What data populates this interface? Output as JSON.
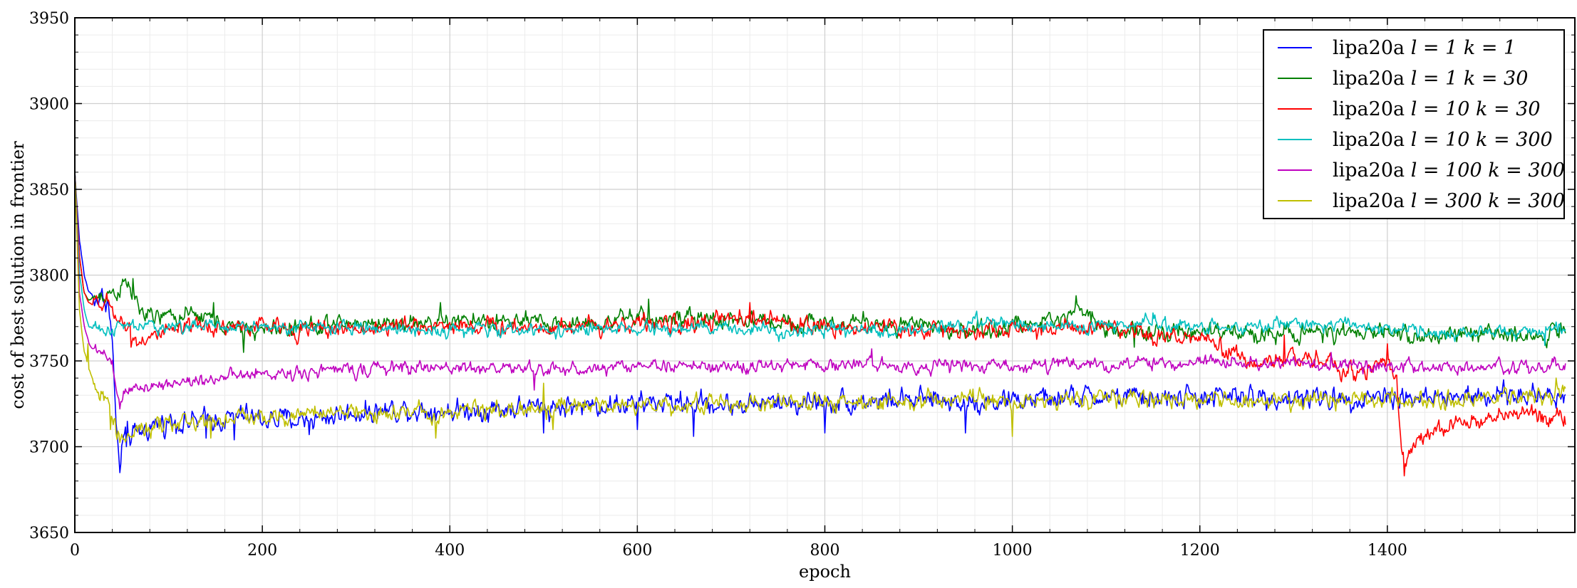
{
  "chart_data": {
    "type": "line",
    "title": "",
    "xlabel": "epoch",
    "ylabel": "cost of best solution in frontier",
    "xlim": [
      0,
      1600
    ],
    "ylim": [
      3650,
      3950
    ],
    "xticks": [
      0,
      200,
      400,
      600,
      800,
      1000,
      1200,
      1400
    ],
    "xtick_labels": [
      "0",
      "200",
      "400",
      "600",
      "800",
      "1000",
      "1200",
      "1400"
    ],
    "yticks": [
      3650,
      3700,
      3750,
      3800,
      3850,
      3900,
      3950
    ],
    "ytick_labels": [
      "3650",
      "3700",
      "3750",
      "3800",
      "3850",
      "3900",
      "3950"
    ],
    "grid": true,
    "legend_position": "top-right",
    "series": [
      {
        "name": "lipa20a l = 1 k = 1",
        "legend_text": "lipa20a",
        "legend_math": "l = 1 k = 1",
        "color": "#0000ff",
        "anchors": [
          [
            0,
            3860
          ],
          [
            5,
            3820
          ],
          [
            10,
            3800
          ],
          [
            15,
            3790
          ],
          [
            20,
            3788
          ],
          [
            25,
            3786
          ],
          [
            30,
            3787
          ],
          [
            35,
            3786
          ],
          [
            40,
            3760
          ],
          [
            45,
            3705
          ],
          [
            48,
            3684
          ],
          [
            50,
            3700
          ],
          [
            55,
            3708
          ],
          [
            60,
            3705
          ],
          [
            80,
            3712
          ],
          [
            100,
            3715
          ],
          [
            120,
            3714
          ],
          [
            140,
            3716
          ],
          [
            160,
            3716
          ],
          [
            180,
            3718
          ],
          [
            200,
            3716
          ],
          [
            250,
            3716
          ],
          [
            300,
            3720
          ],
          [
            350,
            3722
          ],
          [
            400,
            3721
          ],
          [
            450,
            3722
          ],
          [
            500,
            3723
          ],
          [
            550,
            3724
          ],
          [
            600,
            3725
          ],
          [
            650,
            3726
          ],
          [
            700,
            3724
          ],
          [
            750,
            3726
          ],
          [
            800,
            3726
          ],
          [
            850,
            3727
          ],
          [
            900,
            3727
          ],
          [
            950,
            3726
          ],
          [
            1000,
            3727
          ],
          [
            1050,
            3728
          ],
          [
            1100,
            3729
          ],
          [
            1150,
            3728
          ],
          [
            1200,
            3729
          ],
          [
            1250,
            3729
          ],
          [
            1300,
            3728
          ],
          [
            1350,
            3728
          ],
          [
            1400,
            3730
          ],
          [
            1450,
            3728
          ],
          [
            1500,
            3729
          ],
          [
            1550,
            3730
          ],
          [
            1590,
            3730
          ]
        ],
        "noise": 5,
        "spikes": [
          [
            55,
            3700
          ],
          [
            95,
            3706
          ],
          [
            140,
            3705
          ],
          [
            170,
            3704
          ],
          [
            250,
            3707
          ],
          [
            500,
            3708
          ],
          [
            600,
            3710
          ],
          [
            660,
            3706
          ],
          [
            800,
            3708
          ],
          [
            950,
            3708
          ]
        ]
      },
      {
        "name": "lipa20a l = 1 k = 30",
        "legend_text": "lipa20a",
        "legend_math": "l = 1 k = 30",
        "color": "#008000",
        "anchors": [
          [
            0,
            3860
          ],
          [
            5,
            3810
          ],
          [
            10,
            3790
          ],
          [
            15,
            3785
          ],
          [
            20,
            3787
          ],
          [
            30,
            3789
          ],
          [
            40,
            3790
          ],
          [
            50,
            3792
          ],
          [
            55,
            3795
          ],
          [
            60,
            3790
          ],
          [
            70,
            3780
          ],
          [
            80,
            3775
          ],
          [
            100,
            3776
          ],
          [
            140,
            3776
          ],
          [
            170,
            3768
          ],
          [
            200,
            3768
          ],
          [
            250,
            3770
          ],
          [
            300,
            3772
          ],
          [
            350,
            3772
          ],
          [
            400,
            3773
          ],
          [
            450,
            3773
          ],
          [
            500,
            3772
          ],
          [
            550,
            3772
          ],
          [
            600,
            3775
          ],
          [
            650,
            3774
          ],
          [
            700,
            3774
          ],
          [
            750,
            3773
          ],
          [
            800,
            3772
          ],
          [
            850,
            3772
          ],
          [
            900,
            3770
          ],
          [
            950,
            3768
          ],
          [
            1000,
            3770
          ],
          [
            1050,
            3774
          ],
          [
            1070,
            3782
          ],
          [
            1090,
            3774
          ],
          [
            1100,
            3770
          ],
          [
            1150,
            3765
          ],
          [
            1200,
            3767
          ],
          [
            1250,
            3766
          ],
          [
            1300,
            3767
          ],
          [
            1350,
            3765
          ],
          [
            1400,
            3767
          ],
          [
            1450,
            3764
          ],
          [
            1500,
            3766
          ],
          [
            1550,
            3765
          ],
          [
            1590,
            3768
          ]
        ],
        "noise": 4,
        "spikes": [
          [
            62,
            3798
          ],
          [
            148,
            3784
          ],
          [
            180,
            3755
          ],
          [
            390,
            3784
          ],
          [
            612,
            3786
          ],
          [
            1068,
            3788
          ],
          [
            1130,
            3758
          ]
        ]
      },
      {
        "name": "lipa20a l = 10 k = 30",
        "legend_text": "lipa20a",
        "legend_math": "l = 10 k = 30",
        "color": "#ff0000",
        "anchors": [
          [
            0,
            3860
          ],
          [
            5,
            3810
          ],
          [
            10,
            3790
          ],
          [
            15,
            3784
          ],
          [
            25,
            3782
          ],
          [
            35,
            3783
          ],
          [
            45,
            3778
          ],
          [
            55,
            3770
          ],
          [
            65,
            3762
          ],
          [
            80,
            3764
          ],
          [
            100,
            3766
          ],
          [
            140,
            3770
          ],
          [
            200,
            3770
          ],
          [
            250,
            3768
          ],
          [
            300,
            3769
          ],
          [
            350,
            3770
          ],
          [
            400,
            3771
          ],
          [
            450,
            3770
          ],
          [
            500,
            3770
          ],
          [
            550,
            3771
          ],
          [
            600,
            3772
          ],
          [
            650,
            3771
          ],
          [
            700,
            3774
          ],
          [
            750,
            3773
          ],
          [
            800,
            3770
          ],
          [
            850,
            3770
          ],
          [
            900,
            3768
          ],
          [
            950,
            3768
          ],
          [
            1000,
            3768
          ],
          [
            1050,
            3769
          ],
          [
            1100,
            3768
          ],
          [
            1150,
            3764
          ],
          [
            1200,
            3763
          ],
          [
            1230,
            3755
          ],
          [
            1260,
            3748
          ],
          [
            1300,
            3752
          ],
          [
            1340,
            3750
          ],
          [
            1350,
            3740
          ],
          [
            1360,
            3745
          ],
          [
            1380,
            3746
          ],
          [
            1400,
            3750
          ],
          [
            1410,
            3740
          ],
          [
            1415,
            3700
          ],
          [
            1420,
            3695
          ],
          [
            1440,
            3705
          ],
          [
            1460,
            3712
          ],
          [
            1500,
            3715
          ],
          [
            1550,
            3720
          ],
          [
            1590,
            3718
          ]
        ],
        "noise": 4,
        "spikes": [
          [
            60,
            3758
          ],
          [
            720,
            3784
          ],
          [
            1290,
            3765
          ],
          [
            1418,
            3683
          ],
          [
            1400,
            3760
          ],
          [
            1588,
            3712
          ]
        ]
      },
      {
        "name": "lipa20a l = 10 k = 300",
        "legend_text": "lipa20a",
        "legend_math": "l = 10 k = 300",
        "color": "#00bfbf",
        "anchors": [
          [
            0,
            3860
          ],
          [
            5,
            3800
          ],
          [
            10,
            3780
          ],
          [
            15,
            3770
          ],
          [
            25,
            3767
          ],
          [
            35,
            3768
          ],
          [
            50,
            3770
          ],
          [
            100,
            3770
          ],
          [
            200,
            3770
          ],
          [
            300,
            3769
          ],
          [
            400,
            3768
          ],
          [
            500,
            3768
          ],
          [
            600,
            3768
          ],
          [
            700,
            3769
          ],
          [
            800,
            3767
          ],
          [
            900,
            3768
          ],
          [
            950,
            3772
          ],
          [
            1000,
            3772
          ],
          [
            1050,
            3770
          ],
          [
            1100,
            3770
          ],
          [
            1150,
            3772
          ],
          [
            1200,
            3770
          ],
          [
            1250,
            3770
          ],
          [
            1300,
            3772
          ],
          [
            1350,
            3771
          ],
          [
            1400,
            3769
          ],
          [
            1450,
            3767
          ],
          [
            1500,
            3766
          ],
          [
            1550,
            3767
          ],
          [
            1590,
            3768
          ]
        ],
        "noise": 3,
        "spikes": [
          [
            962,
            3779
          ],
          [
            1150,
            3778
          ],
          [
            1568,
            3759
          ]
        ]
      },
      {
        "name": "lipa20a l = 100 k = 300",
        "legend_text": "lipa20a",
        "legend_math": "l = 100 k = 300",
        "color": "#bf00bf",
        "anchors": [
          [
            0,
            3860
          ],
          [
            5,
            3790
          ],
          [
            10,
            3770
          ],
          [
            15,
            3760
          ],
          [
            20,
            3756
          ],
          [
            30,
            3755
          ],
          [
            40,
            3745
          ],
          [
            45,
            3730
          ],
          [
            50,
            3728
          ],
          [
            55,
            3732
          ],
          [
            70,
            3735
          ],
          [
            100,
            3737
          ],
          [
            150,
            3740
          ],
          [
            200,
            3742
          ],
          [
            250,
            3744
          ],
          [
            300,
            3745
          ],
          [
            350,
            3746
          ],
          [
            400,
            3746
          ],
          [
            450,
            3746
          ],
          [
            500,
            3745
          ],
          [
            550,
            3745
          ],
          [
            600,
            3748
          ],
          [
            650,
            3747
          ],
          [
            700,
            3746
          ],
          [
            750,
            3747
          ],
          [
            800,
            3748
          ],
          [
            850,
            3748
          ],
          [
            900,
            3747
          ],
          [
            950,
            3747
          ],
          [
            1000,
            3747
          ],
          [
            1050,
            3748
          ],
          [
            1100,
            3748
          ],
          [
            1150,
            3748
          ],
          [
            1200,
            3749
          ],
          [
            1250,
            3750
          ],
          [
            1300,
            3748
          ],
          [
            1350,
            3748
          ],
          [
            1400,
            3747
          ],
          [
            1450,
            3745
          ],
          [
            1500,
            3746
          ],
          [
            1550,
            3746
          ],
          [
            1590,
            3748
          ]
        ],
        "noise": 3,
        "spikes": [
          [
            48,
            3722
          ],
          [
            490,
            3733
          ],
          [
            850,
            3757
          ],
          [
            1340,
            3755
          ]
        ]
      },
      {
        "name": "lipa20a l = 300 k = 300",
        "legend_text": "lipa20a",
        "legend_math": "l = 300 k = 300",
        "color": "#bfbf00",
        "anchors": [
          [
            0,
            3860
          ],
          [
            5,
            3780
          ],
          [
            10,
            3755
          ],
          [
            15,
            3745
          ],
          [
            20,
            3738
          ],
          [
            25,
            3730
          ],
          [
            35,
            3728
          ],
          [
            40,
            3715
          ],
          [
            45,
            3708
          ],
          [
            50,
            3705
          ],
          [
            60,
            3708
          ],
          [
            80,
            3710
          ],
          [
            100,
            3713
          ],
          [
            150,
            3716
          ],
          [
            200,
            3718
          ],
          [
            250,
            3719
          ],
          [
            300,
            3720
          ],
          [
            350,
            3720
          ],
          [
            400,
            3721
          ],
          [
            450,
            3722
          ],
          [
            500,
            3722
          ],
          [
            550,
            3723
          ],
          [
            600,
            3724
          ],
          [
            650,
            3724
          ],
          [
            700,
            3725
          ],
          [
            750,
            3725
          ],
          [
            800,
            3726
          ],
          [
            850,
            3726
          ],
          [
            900,
            3727
          ],
          [
            950,
            3727
          ],
          [
            1000,
            3726
          ],
          [
            1050,
            3727
          ],
          [
            1100,
            3728
          ],
          [
            1150,
            3728
          ],
          [
            1200,
            3727
          ],
          [
            1250,
            3727
          ],
          [
            1300,
            3727
          ],
          [
            1350,
            3728
          ],
          [
            1400,
            3728
          ],
          [
            1450,
            3727
          ],
          [
            1500,
            3728
          ],
          [
            1550,
            3729
          ],
          [
            1590,
            3732
          ]
        ],
        "noise": 4,
        "spikes": [
          [
            14,
            3760
          ],
          [
            38,
            3710
          ],
          [
            145,
            3705
          ],
          [
            385,
            3705
          ],
          [
            500,
            3737
          ],
          [
            510,
            3710
          ],
          [
            1000,
            3706
          ],
          [
            1580,
            3740
          ]
        ]
      }
    ]
  }
}
